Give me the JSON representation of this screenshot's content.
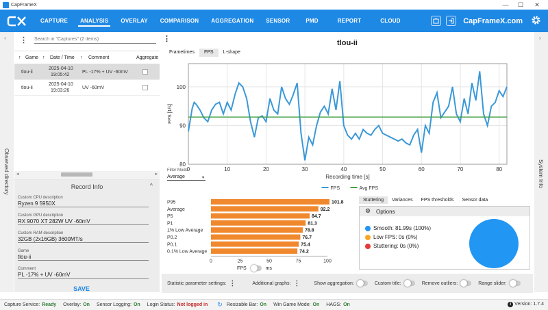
{
  "window": {
    "title": "CapFrameX",
    "controls": [
      "—",
      "☐",
      "✕"
    ]
  },
  "nav": {
    "items": [
      "CAPTURE",
      "ANALYSIS",
      "OVERLAY",
      "COMPARISON",
      "AGGREGATION",
      "SENSOR",
      "PMD",
      "REPORT",
      "CLOUD"
    ],
    "active": "ANALYSIS",
    "brand": "CapFrameX.com"
  },
  "left_strip": {
    "label": "Observed directory"
  },
  "right_strip": {
    "label": "System Info"
  },
  "capture_list": {
    "search_placeholder": "Search in \"Captures\" (2 items)",
    "headers": [
      "Game",
      "Date / Time",
      "Comment",
      "Aggregate"
    ],
    "rows": [
      {
        "game": "tlou-ii",
        "date": "2025-04-10",
        "time": "19:05:42",
        "comment": "PL -17% + UV -60mV",
        "selected": true
      },
      {
        "game": "tlou-ii",
        "date": "2025-04-10",
        "time": "19:03:26",
        "comment": "UV -60mV",
        "selected": false
      }
    ]
  },
  "record_info": {
    "title": "Record Info",
    "fields": [
      {
        "label": "Custom CPU description",
        "value": "Ryzen 9 5950X"
      },
      {
        "label": "Custom GPU description",
        "value": "RX 9070 XT 282W UV -60mV"
      },
      {
        "label": "Custom RAM description",
        "value": "32GB (2x16GB) 3600MT/s"
      },
      {
        "label": "Game",
        "value": "tlou-ii"
      },
      {
        "label": "Comment",
        "value": "PL -17% + UV -60mV"
      }
    ],
    "save_label": "SAVE"
  },
  "graph": {
    "title": "tlou-ii",
    "tabs": [
      "Frametimes",
      "FPS",
      "L-shape"
    ],
    "active_tab": "FPS",
    "filter_label": "Filter Mode",
    "filter_value": "Average"
  },
  "chart_data": [
    {
      "type": "line",
      "title": "tlou-ii",
      "xlabel": "Recording time [s]",
      "ylabel": "FPS [1/s]",
      "xlim": [
        0,
        82
      ],
      "ylim": [
        80,
        106
      ],
      "x_ticks": [
        0,
        10,
        20,
        30,
        40,
        50,
        60,
        70,
        80
      ],
      "y_ticks": [
        80,
        90,
        100
      ],
      "grid": true,
      "legend": "bottom",
      "series": [
        {
          "name": "FPS",
          "color": "#3a98d8",
          "x": [
            0,
            1,
            1.5,
            2,
            3,
            4,
            5,
            6,
            7,
            8,
            9,
            10,
            11,
            12,
            13,
            14,
            15,
            16,
            17,
            18,
            19,
            20,
            21,
            22,
            23,
            24,
            25,
            26,
            27,
            28,
            29,
            30,
            31,
            32,
            33,
            34,
            35,
            36,
            37,
            38,
            39,
            40,
            41,
            42,
            43,
            44,
            45,
            46,
            47,
            48,
            49,
            50,
            51,
            52,
            53,
            54,
            55,
            56,
            57,
            58,
            59,
            60,
            61,
            62,
            63,
            64,
            65,
            66,
            67,
            68,
            69,
            70,
            71,
            72,
            73,
            74,
            75,
            76,
            77,
            78,
            79,
            80,
            81,
            82
          ],
          "y": [
            88.5,
            94.5,
            96,
            95.5,
            94,
            92,
            91,
            94,
            95.5,
            96,
            93,
            96,
            94,
            98,
            101,
            100,
            97,
            91,
            87,
            92,
            92.5,
            91,
            97,
            94,
            93,
            100,
            97,
            95.5,
            98,
            101,
            88,
            81,
            87,
            85,
            90,
            93.5,
            95,
            93,
            99.5,
            94,
            101.5,
            90,
            87.5,
            86.5,
            88,
            86.5,
            89,
            88,
            87.5,
            89,
            90,
            88,
            87.5,
            87,
            86.5,
            86,
            86.5,
            85.5,
            85,
            87.5,
            89,
            83,
            90,
            88,
            96,
            98.5,
            92,
            93.5,
            95,
            100,
            93,
            91,
            97,
            93,
            101,
            96.5,
            104,
            93,
            90,
            95,
            96,
            99,
            97.5,
            100
          ]
        },
        {
          "name": "Avg FPS",
          "color": "#43a047",
          "x": [
            0,
            82
          ],
          "y": [
            92.2,
            92.2
          ]
        }
      ]
    },
    {
      "type": "bar",
      "orientation": "horizontal",
      "xlabel": "FPS",
      "xlim": [
        0,
        100
      ],
      "x_ticks": [
        0,
        25,
        50,
        75,
        100
      ],
      "categories": [
        "P95",
        "Average",
        "P5",
        "P1",
        "1% Low Average",
        "P0.2",
        "P0.1",
        "0.1% Low Average"
      ],
      "values": [
        101.8,
        92.2,
        84.7,
        81.3,
        78.8,
        76.7,
        75.4,
        74.2
      ],
      "color": "#f0882e"
    },
    {
      "type": "pie",
      "categories": [
        "Smooth",
        "Low FPS",
        "Stuttering"
      ],
      "values": [
        100,
        0,
        0
      ],
      "labels": [
        "Smooth:  81.99s (100%)",
        "Low FPS:  0s (0%)",
        "Stuttering:  0s (0%)"
      ],
      "colors": [
        "#2196f3",
        "#f9a825",
        "#e53935"
      ]
    }
  ],
  "stats_panel": {
    "tabs": [
      "Stuttering",
      "Variances",
      "FPS thresholds",
      "Sensor data"
    ],
    "active_tab": "Stuttering",
    "options_label": "Options",
    "unit_left": "FPS",
    "unit_right": "ms"
  },
  "footer": {
    "stat_settings": "Statistic parameter settings:",
    "add_graphs": "Additional graphs:",
    "toggles": [
      "Show aggregation:",
      "Custom title:",
      "Remove outliers:",
      "Range slider:"
    ]
  },
  "status": {
    "items": [
      {
        "key": "Capture Service:",
        "value": "Ready",
        "color": "green"
      },
      {
        "key": "Overlay:",
        "value": "On",
        "color": "green"
      },
      {
        "key": "Sensor Logging:",
        "value": "On",
        "color": "green"
      },
      {
        "key": "Login Status:",
        "value": "Not logged in",
        "color": "red"
      },
      {
        "key": "Resizable Bar:",
        "value": "On",
        "color": "green"
      },
      {
        "key": "Win Game Mode:",
        "value": "On",
        "color": "green"
      },
      {
        "key": "HAGS:",
        "value": "On",
        "color": "green"
      }
    ],
    "version_label": "Version:",
    "version": "1.7.4"
  }
}
